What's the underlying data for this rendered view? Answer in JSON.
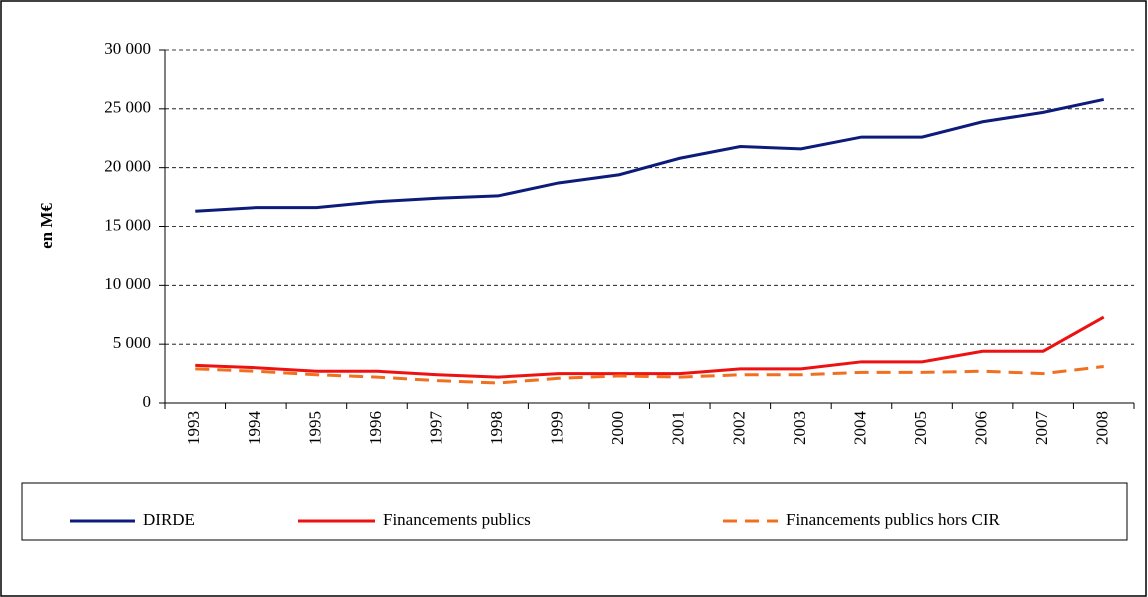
{
  "chart_data": {
    "type": "line",
    "y_label": "en M€",
    "categories": [
      "1993",
      "1994",
      "1995",
      "1996",
      "1997",
      "1998",
      "1999",
      "2000",
      "2001",
      "2002",
      "2003",
      "2004",
      "2005",
      "2006",
      "2007",
      "2008"
    ],
    "series": [
      {
        "name": "DIRDE",
        "color": "#0d1c7a",
        "dashed": false,
        "values": [
          16300,
          16600,
          16600,
          17100,
          17400,
          17600,
          18700,
          19400,
          20800,
          21800,
          21600,
          22600,
          22600,
          23900,
          24700,
          25800
        ]
      },
      {
        "name": "Financements publics",
        "color": "#ee1111",
        "dashed": false,
        "values": [
          3200,
          3000,
          2700,
          2700,
          2400,
          2200,
          2500,
          2500,
          2500,
          2900,
          2900,
          3500,
          3500,
          4400,
          4400,
          7300
        ]
      },
      {
        "name": "Financements publics hors CIR",
        "color": "#f07020",
        "dashed": true,
        "values": [
          2900,
          2700,
          2400,
          2200,
          1900,
          1700,
          2100,
          2300,
          2200,
          2400,
          2400,
          2600,
          2600,
          2700,
          2500,
          3100
        ]
      }
    ],
    "ylim": [
      0,
      30000
    ],
    "yticks": [
      0,
      {
        "value": 5000,
        "label": "5 000"
      },
      {
        "value": 10000,
        "label": "10 000"
      },
      {
        "value": 15000,
        "label": "15 000"
      },
      {
        "value": 20000,
        "label": "20 000"
      },
      {
        "value": 25000,
        "label": "25 000"
      },
      {
        "value": 30000,
        "label": "30 000"
      }
    ],
    "grid": true,
    "legend": "bottom"
  }
}
